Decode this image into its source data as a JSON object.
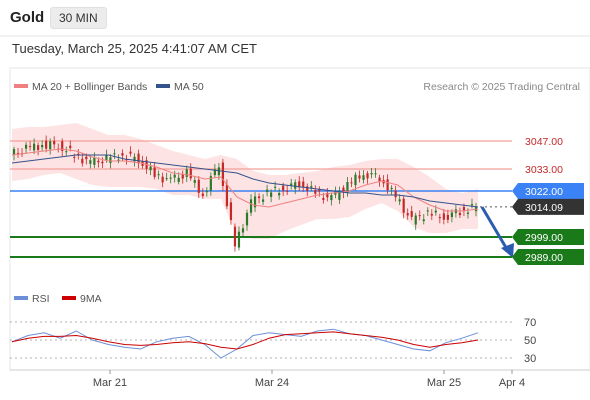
{
  "header": {
    "asset": "Gold",
    "timeframe": "30 MIN",
    "datetime": "Tuesday, March 25, 2025 4:41:07 AM CET"
  },
  "legend": {
    "bb": "MA 20 + Bollinger Bands",
    "ma50": "MA 50",
    "credit": "Research © 2025 Trading Central"
  },
  "rsi_legend": {
    "rsi": "RSI",
    "ma": "9MA"
  },
  "colors": {
    "bb_line": "#f08080",
    "bb_fill": "#fde0e0",
    "ma50": "#34528c",
    "bull": "#2a7a2a",
    "bear": "#c62828",
    "resistance": "#f4a09a",
    "pivot": "#3b82f6",
    "support": "#1a7a1a",
    "arrow": "#2a5db0",
    "rsi": "#6b8fd8",
    "rsi_ma": "#cc0000"
  },
  "chart_data": [
    {
      "type": "candlestick",
      "title": "",
      "x_ticks": [
        "Mar 21",
        "Mar 24",
        "Mar 25",
        "Apr 4"
      ],
      "ylim": [
        2975,
        3065
      ],
      "price": [
        3040,
        3043,
        3045,
        3045,
        3040,
        3036,
        3038,
        3040,
        3038,
        3030,
        3027,
        3031,
        3020,
        3036,
        2995,
        3016,
        3021,
        3023,
        3026,
        3021,
        3018,
        3025,
        3031,
        3029,
        3019,
        3007,
        3011,
        3009,
        3012,
        3014
      ],
      "ma20": [
        3040,
        3041,
        3042,
        3043,
        3042,
        3039,
        3037,
        3037,
        3036,
        3034,
        3031,
        3030,
        3028,
        3029,
        3019,
        3015,
        3014,
        3016,
        3018,
        3020,
        3021,
        3022,
        3025,
        3027,
        3025,
        3019,
        3015,
        3012,
        3012,
        3013
      ],
      "bb_upper": [
        3053,
        3054,
        3054,
        3055,
        3056,
        3053,
        3050,
        3050,
        3048,
        3045,
        3042,
        3040,
        3038,
        3040,
        3038,
        3032,
        3030,
        3030,
        3031,
        3032,
        3034,
        3035,
        3037,
        3038,
        3038,
        3034,
        3029,
        3023,
        3021,
        3023
      ],
      "bb_lower": [
        3027,
        3028,
        3030,
        3031,
        3028,
        3025,
        3024,
        3024,
        3024,
        3023,
        3020,
        3020,
        3018,
        3018,
        3000,
        2998,
        2998,
        3002,
        3005,
        3008,
        3008,
        3009,
        3013,
        3016,
        3012,
        3004,
        3001,
        3001,
        3003,
        3003
      ],
      "ma50": [
        3036,
        3037,
        3038,
        3039,
        3040,
        3040,
        3040,
        3038,
        3037,
        3036,
        3035,
        3034,
        3033,
        3032,
        3031,
        3028,
        3026,
        3025,
        3024,
        3023,
        3022,
        3021,
        3021,
        3020,
        3020,
        3019,
        3017,
        3016,
        3015,
        3014
      ],
      "levels": [
        {
          "label": "3047.00",
          "value": 3047,
          "kind": "resistance"
        },
        {
          "label": "3033.00",
          "value": 3033,
          "kind": "resistance"
        },
        {
          "label": "3022.00",
          "value": 3022,
          "kind": "pivot"
        },
        {
          "label": "3014.09",
          "value": 3014.09,
          "kind": "last"
        },
        {
          "label": "2999.00",
          "value": 2999,
          "kind": "support"
        },
        {
          "label": "2989.00",
          "value": 2989,
          "kind": "support"
        }
      ],
      "forecast": {
        "from": 3014,
        "to": 2989
      }
    },
    {
      "type": "line",
      "title": "",
      "y_ticks": [
        "70",
        "50",
        "30"
      ],
      "ylim": [
        20,
        80
      ],
      "series": [
        {
          "name": "RSI",
          "values": [
            48,
            55,
            58,
            52,
            60,
            50,
            45,
            42,
            40,
            48,
            52,
            54,
            45,
            30,
            40,
            55,
            58,
            56,
            54,
            60,
            62,
            57,
            55,
            50,
            45,
            40,
            38,
            47,
            52,
            58
          ]
        },
        {
          "name": "9MA",
          "values": [
            48,
            52,
            54,
            54,
            55,
            52,
            48,
            45,
            44,
            45,
            47,
            48,
            46,
            42,
            40,
            45,
            52,
            56,
            57,
            58,
            59,
            57,
            55,
            53,
            50,
            45,
            42,
            45,
            47,
            50
          ]
        }
      ]
    }
  ]
}
